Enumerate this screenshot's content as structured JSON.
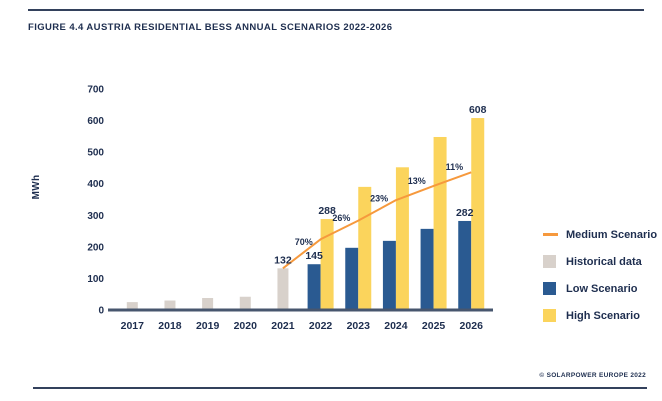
{
  "header": {
    "title": "FIGURE 4.4 AUSTRIA RESIDENTIAL BESS ANNUAL SCENARIOS 2022-2026"
  },
  "footer": {
    "credit": "© SOLARPOWER EUROPE 2022"
  },
  "colors": {
    "text_navy": "#1e2e4f",
    "axis_line": "#47566e",
    "rule_line": "#33415c",
    "historical_gray": "#d8d1cb",
    "low_blue": "#2a5a91",
    "high_yellow": "#fbd45c",
    "medium_orange": "#f6993d"
  },
  "chart_data": {
    "type": "bar",
    "title": "FIGURE 4.4 AUSTRIA RESIDENTIAL BESS ANNUAL SCENARIOS 2022-2026",
    "xlabel": "",
    "ylabel": "MWh",
    "ylim": [
      0,
      700
    ],
    "yticks": [
      0,
      100,
      200,
      300,
      400,
      500,
      600,
      700
    ],
    "grid": false,
    "legend_position": "right",
    "categories": [
      "2017",
      "2018",
      "2019",
      "2020",
      "2021",
      "2022",
      "2023",
      "2024",
      "2025",
      "2026"
    ],
    "series": [
      {
        "name": "Historical data",
        "kind": "bar",
        "color": "#d8d1cb",
        "values": [
          25,
          30,
          38,
          42,
          132,
          null,
          null,
          null,
          null,
          null
        ]
      },
      {
        "name": "Low Scenario",
        "kind": "bar",
        "color": "#2a5a91",
        "values": [
          null,
          null,
          null,
          null,
          null,
          145,
          197,
          219,
          257,
          282
        ]
      },
      {
        "name": "High Scenario",
        "kind": "bar",
        "color": "#fbd45c",
        "values": [
          null,
          null,
          null,
          null,
          null,
          288,
          390,
          452,
          548,
          608
        ]
      },
      {
        "name": "Medium Scenario",
        "kind": "line",
        "color": "#f6993d",
        "values": [
          null,
          null,
          null,
          null,
          132,
          224,
          283,
          348,
          393,
          436
        ]
      }
    ],
    "point_labels": [
      {
        "category": "2021",
        "series": "Historical data",
        "text": "132"
      },
      {
        "category": "2022",
        "series": "Low Scenario",
        "text": "145"
      },
      {
        "category": "2022",
        "series": "High Scenario",
        "text": "288"
      },
      {
        "category": "2026",
        "series": "Low Scenario",
        "text": "282"
      },
      {
        "category": "2026",
        "series": "High Scenario",
        "text": "608"
      }
    ],
    "growth_labels": [
      {
        "text": "70%",
        "from": "2021",
        "to": "2022"
      },
      {
        "text": "26%",
        "from": "2022",
        "to": "2023"
      },
      {
        "text": "23%",
        "from": "2023",
        "to": "2024"
      },
      {
        "text": "13%",
        "from": "2024",
        "to": "2025"
      },
      {
        "text": "11%",
        "from": "2025",
        "to": "2026"
      }
    ],
    "legend": [
      {
        "label": "Medium Scenario",
        "series": "Medium Scenario"
      },
      {
        "label": "Historical data",
        "series": "Historical data"
      },
      {
        "label": "Low Scenario",
        "series": "Low Scenario"
      },
      {
        "label": "High Scenario",
        "series": "High Scenario"
      }
    ]
  }
}
